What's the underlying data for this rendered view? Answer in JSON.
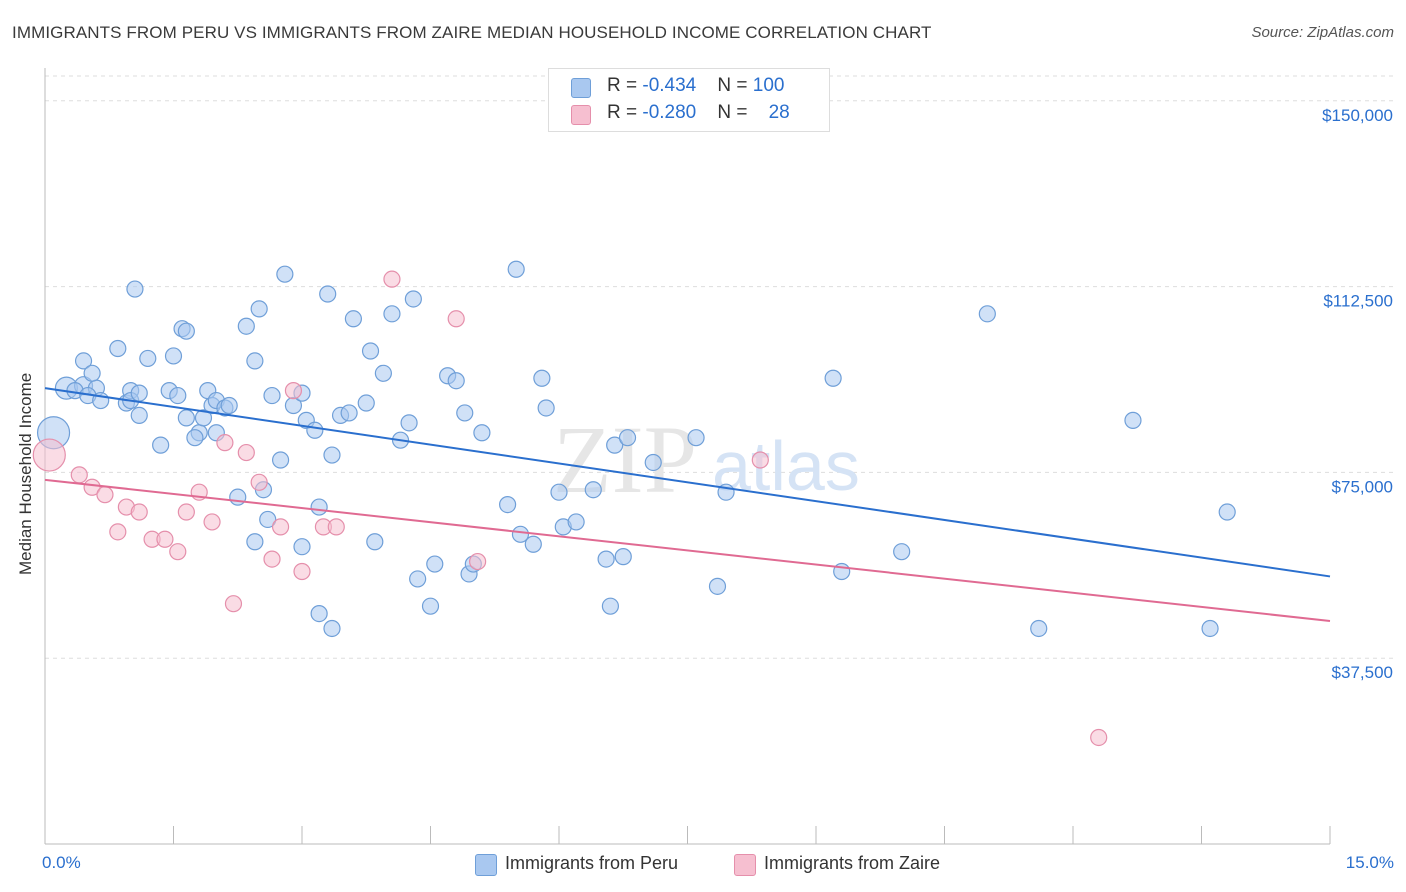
{
  "title": "IMMIGRANTS FROM PERU VS IMMIGRANTS FROM ZAIRE MEDIAN HOUSEHOLD INCOME CORRELATION CHART",
  "source": "Source: ZipAtlas.com",
  "watermark": {
    "zip": "ZIP",
    "atlas": "atlas"
  },
  "colors": {
    "peru_fill": "#a9c8f0",
    "peru_stroke": "#6f9fd8",
    "peru_line": "#2a6fce",
    "zaire_fill": "#f6bfd0",
    "zaire_stroke": "#e58fab",
    "zaire_line": "#e06a92",
    "axis_label": "#2a6fce",
    "grid": "#dddddd"
  },
  "legend": {
    "rows": [
      {
        "r_label": "R = ",
        "r_value": "-0.434",
        "n_label": "N = ",
        "n_value": "100"
      },
      {
        "r_label": "R = ",
        "r_value": "-0.280",
        "n_label": "N = ",
        "n_value": "28"
      }
    ]
  },
  "chart_data": {
    "type": "scatter",
    "title": "IMMIGRANTS FROM PERU VS IMMIGRANTS FROM ZAIRE MEDIAN HOUSEHOLD INCOME CORRELATION CHART",
    "xlabel": "",
    "ylabel": "Median Household Income",
    "xlim": [
      0,
      15
    ],
    "ylim": [
      0,
      155000
    ],
    "x_tick_labels": [
      "0.0%",
      "15.0%"
    ],
    "y_ticks": [
      37500,
      75000,
      112500,
      150000
    ],
    "y_tick_labels": [
      "$37,500",
      "$75,000",
      "$112,500",
      "$150,000"
    ],
    "grid": "horizontal dashed",
    "legend_position": "top-center",
    "series": [
      {
        "name": "Immigrants from Peru",
        "R": -0.434,
        "N": 100,
        "trend": {
          "x": [
            0.0,
            15.0
          ],
          "y": [
            92000,
            54000
          ]
        },
        "points": [
          [
            0.1,
            83000,
            16
          ],
          [
            0.25,
            92000,
            11
          ],
          [
            0.45,
            92500,
            9
          ],
          [
            0.35,
            91500,
            8
          ],
          [
            0.6,
            92000,
            8
          ],
          [
            0.5,
            90500,
            8
          ],
          [
            0.45,
            97500,
            8
          ],
          [
            0.55,
            95000,
            8
          ],
          [
            0.85,
            100000,
            8
          ],
          [
            0.95,
            89000,
            8
          ],
          [
            1.0,
            91500,
            8
          ],
          [
            1.1,
            86500,
            8
          ],
          [
            1.0,
            89500,
            8
          ],
          [
            1.05,
            112000,
            8
          ],
          [
            1.1,
            91000,
            8
          ],
          [
            1.2,
            98000,
            8
          ],
          [
            1.35,
            80500,
            8
          ],
          [
            1.45,
            91500,
            8
          ],
          [
            1.55,
            90500,
            8
          ],
          [
            1.5,
            98500,
            8
          ],
          [
            1.6,
            104000,
            8
          ],
          [
            1.65,
            103500,
            8
          ],
          [
            1.65,
            86000,
            8
          ],
          [
            1.8,
            83000,
            8
          ],
          [
            1.85,
            86000,
            8
          ],
          [
            1.9,
            91500,
            8
          ],
          [
            1.95,
            88500,
            8
          ],
          [
            2.0,
            89500,
            8
          ],
          [
            2.1,
            88000,
            8
          ],
          [
            2.0,
            83000,
            8
          ],
          [
            2.15,
            88500,
            8
          ],
          [
            2.25,
            70000,
            8
          ],
          [
            2.35,
            104500,
            8
          ],
          [
            2.45,
            97500,
            8
          ],
          [
            2.5,
            108000,
            8
          ],
          [
            2.55,
            71500,
            8
          ],
          [
            2.6,
            65500,
            8
          ],
          [
            2.65,
            90500,
            8
          ],
          [
            2.75,
            77500,
            8
          ],
          [
            2.8,
            115000,
            8
          ],
          [
            2.9,
            88500,
            8
          ],
          [
            3.0,
            91000,
            8
          ],
          [
            3.05,
            85500,
            8
          ],
          [
            3.15,
            83500,
            8
          ],
          [
            3.2,
            68000,
            8
          ],
          [
            3.3,
            111000,
            8
          ],
          [
            3.35,
            78500,
            8
          ],
          [
            3.45,
            86500,
            8
          ],
          [
            3.55,
            87000,
            8
          ],
          [
            3.6,
            106000,
            8
          ],
          [
            3.75,
            89000,
            8
          ],
          [
            3.8,
            99500,
            8
          ],
          [
            3.95,
            95000,
            8
          ],
          [
            4.05,
            107000,
            8
          ],
          [
            4.15,
            81500,
            8
          ],
          [
            4.25,
            85000,
            8
          ],
          [
            4.3,
            110000,
            8
          ],
          [
            4.35,
            53500,
            8
          ],
          [
            4.5,
            48000,
            8
          ],
          [
            4.55,
            56500,
            8
          ],
          [
            4.7,
            94500,
            8
          ],
          [
            4.8,
            93500,
            8
          ],
          [
            4.9,
            87000,
            8
          ],
          [
            4.95,
            54500,
            8
          ],
          [
            5.0,
            56500,
            8
          ],
          [
            5.1,
            83000,
            8
          ],
          [
            5.4,
            68500,
            8
          ],
          [
            5.5,
            116000,
            8
          ],
          [
            5.55,
            62500,
            8
          ],
          [
            5.7,
            60500,
            8
          ],
          [
            5.85,
            88000,
            8
          ],
          [
            6.0,
            71000,
            8
          ],
          [
            6.05,
            64000,
            8
          ],
          [
            6.2,
            65000,
            8
          ],
          [
            6.4,
            71500,
            8
          ],
          [
            6.55,
            57500,
            8
          ],
          [
            6.6,
            48000,
            8
          ],
          [
            6.65,
            80500,
            8
          ],
          [
            6.75,
            58000,
            8
          ],
          [
            6.8,
            82000,
            8
          ],
          [
            7.1,
            77000,
            8
          ],
          [
            7.6,
            82000,
            8
          ],
          [
            7.85,
            52000,
            8
          ],
          [
            7.95,
            71000,
            8
          ],
          [
            3.2,
            46500,
            8
          ],
          [
            3.35,
            43500,
            8
          ],
          [
            3.85,
            61000,
            8
          ],
          [
            9.2,
            94000,
            8
          ],
          [
            9.3,
            55000,
            8
          ],
          [
            10.0,
            59000,
            8
          ],
          [
            11.0,
            107000,
            8
          ],
          [
            11.6,
            43500,
            8
          ],
          [
            12.7,
            85500,
            8
          ],
          [
            13.6,
            43500,
            8
          ],
          [
            13.8,
            67000,
            8
          ],
          [
            0.65,
            89500,
            8
          ],
          [
            1.75,
            82000,
            8
          ],
          [
            2.45,
            61000,
            8
          ],
          [
            3.0,
            60000,
            8
          ],
          [
            5.8,
            94000,
            8
          ]
        ]
      },
      {
        "name": "Immigrants from Zaire",
        "R": -0.28,
        "N": 28,
        "trend": {
          "x": [
            0.0,
            15.0
          ],
          "y": [
            73500,
            45000
          ]
        },
        "points": [
          [
            0.05,
            78500,
            16
          ],
          [
            0.4,
            74500,
            8
          ],
          [
            0.55,
            72000,
            8
          ],
          [
            0.7,
            70500,
            8
          ],
          [
            0.85,
            63000,
            8
          ],
          [
            0.95,
            68000,
            8
          ],
          [
            1.1,
            67000,
            8
          ],
          [
            1.25,
            61500,
            8
          ],
          [
            1.4,
            61500,
            8
          ],
          [
            1.55,
            59000,
            8
          ],
          [
            1.65,
            67000,
            8
          ],
          [
            1.8,
            71000,
            8
          ],
          [
            1.95,
            65000,
            8
          ],
          [
            2.1,
            81000,
            8
          ],
          [
            2.2,
            48500,
            8
          ],
          [
            2.35,
            79000,
            8
          ],
          [
            2.5,
            73000,
            8
          ],
          [
            2.65,
            57500,
            8
          ],
          [
            2.75,
            64000,
            8
          ],
          [
            2.9,
            91500,
            8
          ],
          [
            3.0,
            55000,
            8
          ],
          [
            3.25,
            64000,
            8
          ],
          [
            3.4,
            64000,
            8
          ],
          [
            4.05,
            114000,
            8
          ],
          [
            4.8,
            106000,
            8
          ],
          [
            5.05,
            57000,
            8
          ],
          [
            8.35,
            77500,
            8
          ],
          [
            12.3,
            21500,
            8
          ]
        ]
      }
    ]
  }
}
